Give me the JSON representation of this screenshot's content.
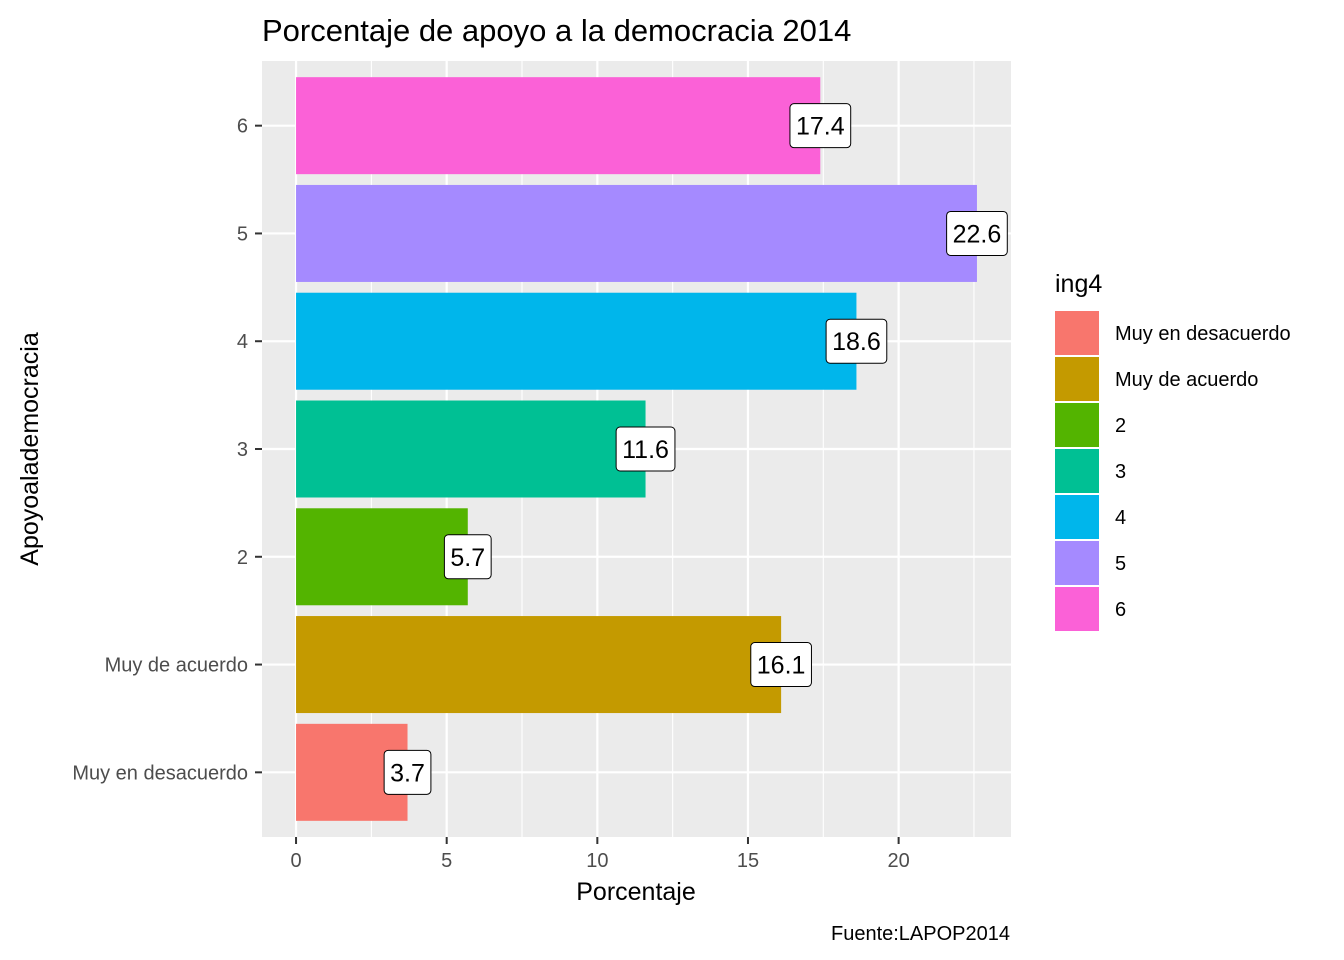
{
  "chart_data": {
    "type": "bar",
    "orientation": "horizontal",
    "title": "Porcentaje de apoyo a la democracia 2014",
    "xlabel": "Porcentaje",
    "ylabel": "Apoyoalademocracia",
    "caption": "Fuente:LAPOP2014",
    "categories": [
      "Muy en desacuerdo",
      "Muy de acuerdo",
      "2",
      "3",
      "4",
      "5",
      "6"
    ],
    "values": [
      3.7,
      16.1,
      5.7,
      11.6,
      18.6,
      22.6,
      17.4
    ],
    "data_labels": [
      "3.7",
      "16.1",
      "5.7",
      "11.6",
      "18.6",
      "22.6",
      "17.4"
    ],
    "colors": [
      "#F8766D",
      "#C49A00",
      "#53B400",
      "#00C094",
      "#00B6EB",
      "#A58AFF",
      "#FB61D7"
    ],
    "xlim": [
      -1.13,
      23.73
    ],
    "x_ticks": [
      0,
      5,
      10,
      15,
      20
    ],
    "x_tick_labels": [
      "0",
      "5",
      "10",
      "15",
      "20"
    ],
    "grid": true,
    "panel_background": "#EBEBEB",
    "legend": {
      "title": "ing4",
      "position": "right",
      "entries": [
        "Muy en desacuerdo",
        "Muy de acuerdo",
        "2",
        "3",
        "4",
        "5",
        "6"
      ]
    }
  }
}
